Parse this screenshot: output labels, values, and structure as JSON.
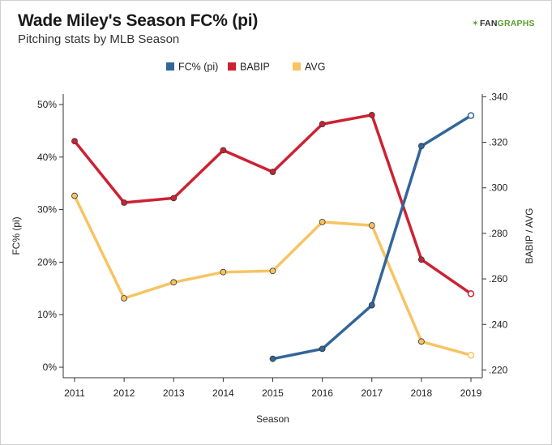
{
  "header": {
    "title": "Wade Miley's Season FC% (pi)",
    "subtitle": "Pitching stats by MLB Season",
    "logo_mark": "✶",
    "logo_fan": "FAN",
    "logo_graphs": "GRAPHS"
  },
  "colors": {
    "fc": "#336699",
    "babip": "#cc2233",
    "avg": "#f7c462",
    "axis": "#333333",
    "grid": "#e6e6e6"
  },
  "chart_data": {
    "type": "line",
    "x": [
      2011,
      2012,
      2013,
      2014,
      2015,
      2016,
      2017,
      2018,
      2019
    ],
    "xlabel": "Season",
    "ylabel_left": "FC% (pi)",
    "ylabel_right": "BABIP / AVG",
    "ylim_left": [
      -0.02,
      0.52
    ],
    "ylim_right": [
      0.2166,
      0.3412
    ],
    "yticks_left": [
      {
        "v": 0.0,
        "label": "0%"
      },
      {
        "v": 0.1,
        "label": "10%"
      },
      {
        "v": 0.2,
        "label": "20%"
      },
      {
        "v": 0.3,
        "label": "30%"
      },
      {
        "v": 0.4,
        "label": "40%"
      },
      {
        "v": 0.5,
        "label": "50%"
      }
    ],
    "yticks_right": [
      {
        "v": 0.22,
        "label": ".220"
      },
      {
        "v": 0.24,
        "label": ".240"
      },
      {
        "v": 0.26,
        "label": ".260"
      },
      {
        "v": 0.28,
        "label": ".280"
      },
      {
        "v": 0.3,
        "label": ".300"
      },
      {
        "v": 0.32,
        "label": ".320"
      },
      {
        "v": 0.34,
        "label": ".340"
      }
    ],
    "legend_position": "top-center",
    "series": [
      {
        "name": "FC% (pi)",
        "axis": "left",
        "color": "#336699",
        "values": [
          null,
          null,
          null,
          null,
          0.016,
          0.035,
          0.118,
          0.421,
          0.479
        ]
      },
      {
        "name": "BABIP",
        "axis": "right",
        "color": "#cc2233",
        "values": [
          0.3205,
          0.2935,
          0.2955,
          0.3165,
          0.307,
          0.328,
          0.332,
          0.2685,
          0.2535
        ]
      },
      {
        "name": "AVG",
        "axis": "right",
        "color": "#f7c462",
        "values": [
          0.2965,
          0.2515,
          0.2585,
          0.263,
          0.2635,
          0.285,
          0.2835,
          0.2325,
          0.2265
        ]
      }
    ]
  }
}
